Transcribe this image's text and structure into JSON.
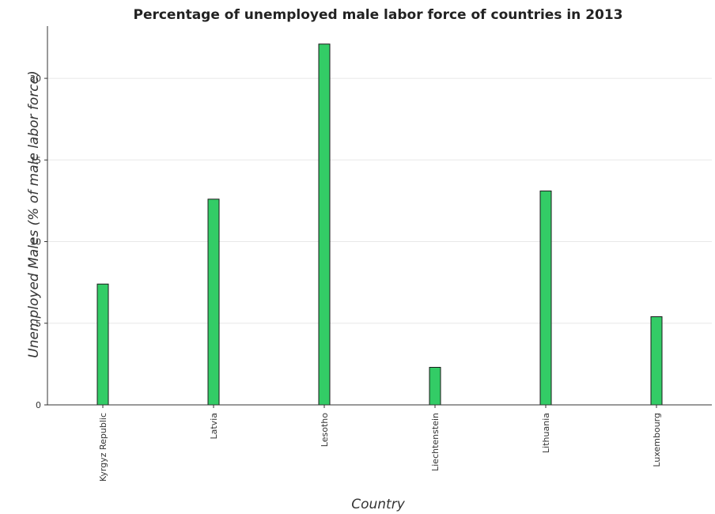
{
  "chart_data": {
    "type": "bar",
    "title": "Percentage of unemployed male labor force of countries in 2013",
    "xlabel": "Country",
    "ylabel": "Unemployed Males (% of male labor force)",
    "categories": [
      "Kyrgyz Republic",
      "Latvia",
      "Lesotho",
      "Liechtenstein",
      "Lithuania",
      "Luxembourg"
    ],
    "values": [
      7.4,
      12.6,
      22.1,
      2.3,
      13.1,
      5.4
    ],
    "yticks": [
      0,
      5,
      10,
      15,
      20
    ],
    "ylim": [
      0,
      23.2
    ],
    "bar_color": "#33cc66"
  }
}
